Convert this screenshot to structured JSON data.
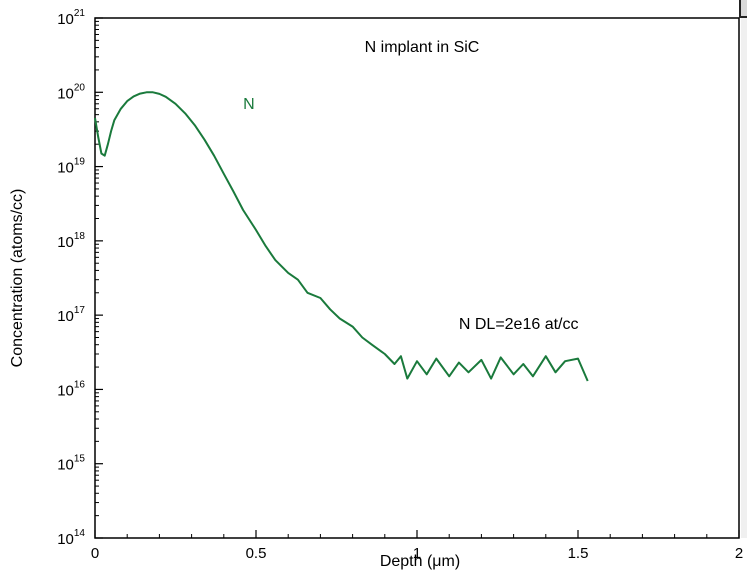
{
  "chart_data": {
    "type": "line",
    "title": "N implant in SiC",
    "xlabel": "Depth (μm)",
    "ylabel": "Concentration (atoms/cc)",
    "xlim": [
      0,
      2
    ],
    "ylim": [
      100000000000000.0,
      1e+21
    ],
    "yscale": "log",
    "grid": false,
    "x_ticks": [
      "0",
      "0.5",
      "1",
      "1.5",
      "2"
    ],
    "y_ticks": [
      {
        "base": "10",
        "exp": "21"
      },
      {
        "base": "10",
        "exp": "20"
      },
      {
        "base": "10",
        "exp": "19"
      },
      {
        "base": "10",
        "exp": "18"
      },
      {
        "base": "10",
        "exp": "17"
      },
      {
        "base": "10",
        "exp": "16"
      },
      {
        "base": "10",
        "exp": "15"
      },
      {
        "base": "10",
        "exp": "14"
      }
    ],
    "series": [
      {
        "name": "N",
        "color": "#1a7a3c",
        "x": [
          0.0,
          0.01,
          0.02,
          0.03,
          0.04,
          0.05,
          0.06,
          0.08,
          0.1,
          0.12,
          0.14,
          0.16,
          0.18,
          0.2,
          0.22,
          0.25,
          0.28,
          0.31,
          0.34,
          0.37,
          0.4,
          0.43,
          0.46,
          0.5,
          0.53,
          0.56,
          0.6,
          0.63,
          0.66,
          0.7,
          0.73,
          0.76,
          0.8,
          0.83,
          0.86,
          0.9,
          0.93,
          0.95,
          0.97,
          1.0,
          1.03,
          1.06,
          1.1,
          1.13,
          1.16,
          1.2,
          1.23,
          1.26,
          1.3,
          1.33,
          1.36,
          1.4,
          1.43,
          1.46,
          1.5,
          1.53
        ],
        "y": [
          4.5e+19,
          2.5e+19,
          1.5e+19,
          1.4e+19,
          2e+19,
          3e+19,
          4.2e+19,
          6e+19,
          7.6e+19,
          8.8e+19,
          9.6e+19,
          1e+20,
          1e+20,
          9.5e+19,
          8.7e+19,
          7e+19,
          5.2e+19,
          3.6e+19,
          2.3e+19,
          1.4e+19,
          8e+18,
          4.6e+18,
          2.6e+18,
          1.4e+18,
          8.5e+17,
          5.5e+17,
          3.7e+17,
          3e+17,
          2e+17,
          1.7e+17,
          1.2e+17,
          9e+16,
          7e+16,
          5e+16,
          4e+16,
          3e+16,
          2.2e+16,
          2.8e+16,
          1.4e+16,
          2.4e+16,
          1.6e+16,
          2.6e+16,
          1.5e+16,
          2.3e+16,
          1.7e+16,
          2.5e+16,
          1.4e+16,
          2.7e+16,
          1.6e+16,
          2.2e+16,
          1.5e+16,
          2.8e+16,
          1.7e+16,
          2.4e+16,
          2.6e+16,
          1.3e+16
        ]
      }
    ],
    "annotations": [
      {
        "text": "N",
        "x": 0.46,
        "y": 6e+19,
        "color": "#1a7a3c"
      },
      {
        "text": "N DL=2e16 at/cc",
        "x": 1.13,
        "y": 6.5e+16,
        "color": "#000000"
      }
    ]
  }
}
